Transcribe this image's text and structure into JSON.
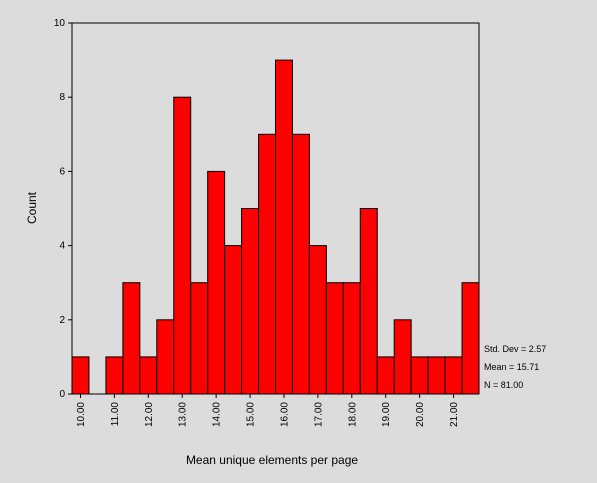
{
  "chart_data": {
    "type": "bar",
    "categories": [
      "10.00",
      "10.50",
      "11.00",
      "11.50",
      "12.00",
      "12.50",
      "13.00",
      "13.50",
      "14.00",
      "14.50",
      "15.00",
      "15.50",
      "16.00",
      "16.50",
      "17.00",
      "17.50",
      "18.00",
      "18.50",
      "19.00",
      "19.50",
      "20.00",
      "20.50",
      "21.00",
      "21.50"
    ],
    "values": [
      1,
      0,
      1,
      3,
      1,
      2,
      8,
      3,
      6,
      4,
      5,
      7,
      9,
      7,
      4,
      3,
      3,
      5,
      1,
      2,
      1,
      1,
      1,
      3
    ],
    "x_tick_labels": [
      "10.00",
      "11.00",
      "12.00",
      "13.00",
      "14.00",
      "15.00",
      "16.00",
      "17.00",
      "18.00",
      "19.00",
      "20.00",
      "21.00"
    ],
    "y_tick_labels": [
      "0",
      "2",
      "4",
      "6",
      "8",
      "10"
    ],
    "xlabel": "Mean unique elements per page",
    "ylabel": "Count",
    "ylim": [
      0,
      10
    ],
    "grid": false,
    "bar_color": "#ff0000",
    "stats": [
      {
        "label": "Std. Dev = 2.57"
      },
      {
        "label": "Mean = 15.71"
      },
      {
        "label": "N = 81.00"
      }
    ]
  },
  "colors": {
    "background": "#dcdcdc",
    "bar": "#ff0000",
    "axis": "#000000"
  }
}
